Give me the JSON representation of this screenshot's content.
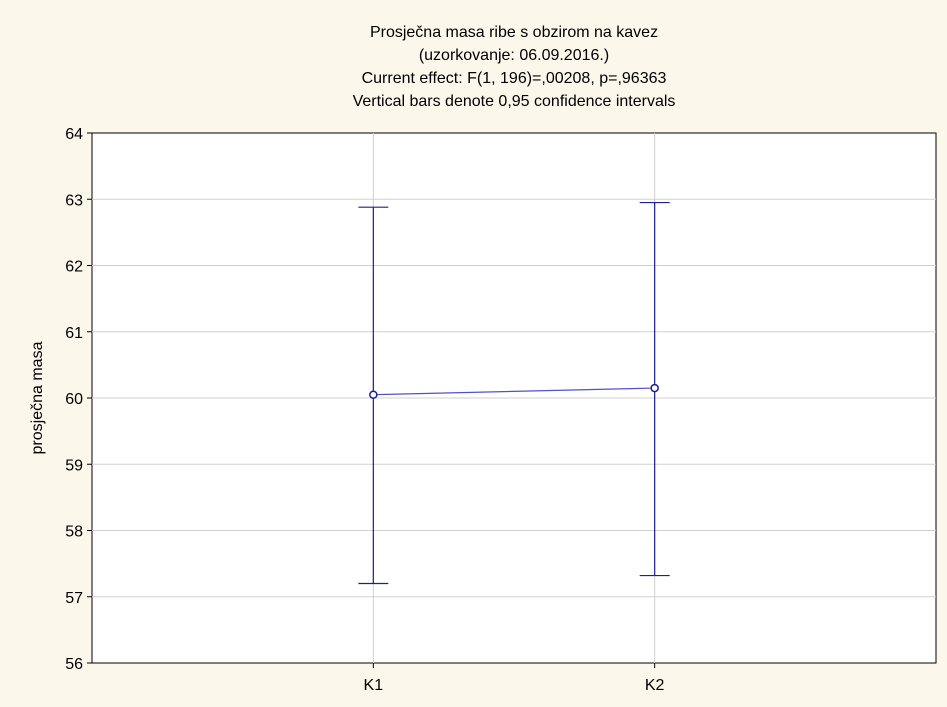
{
  "chart_data": {
    "type": "line",
    "title_lines": [
      "Prosječna masa ribe s obzirom na kavez",
      "(uzorkovanje: 06.09.2016.)",
      "Current effect: F(1, 196)=,00208, p=,96363",
      "Vertical bars denote 0,95 confidence intervals"
    ],
    "xlabel": "",
    "ylabel": "prosječna masa",
    "categories": [
      "K1",
      "K2"
    ],
    "series": [
      {
        "means": [
          60.05,
          60.15
        ],
        "ci_lower": [
          57.2,
          57.32
        ],
        "ci_upper": [
          62.88,
          62.95
        ]
      }
    ],
    "ylim": [
      56,
      64
    ],
    "yticks": [
      56,
      57,
      58,
      59,
      60,
      61,
      62,
      63,
      64
    ],
    "grid": true,
    "colors": {
      "background": "#fbf7ea",
      "plot_background": "#ffffff",
      "series": "#1f1f8f",
      "mean_line": "#5050d0",
      "grid": "#d0d0d0"
    }
  }
}
